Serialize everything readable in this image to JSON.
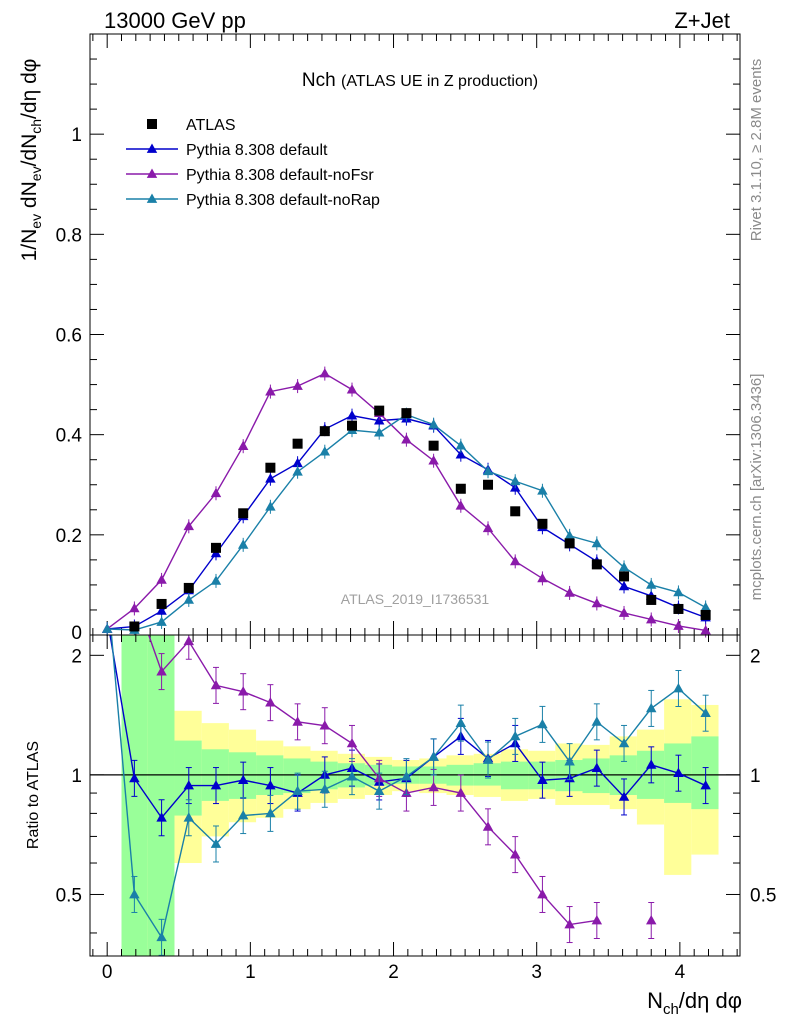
{
  "header": {
    "left": "13000 GeV pp",
    "right": "Z+Jet"
  },
  "side_labels": {
    "rivet": "Rivet 3.1.10, ≥ 2.8M events",
    "mcplots": "mcplots.cern.ch [arXiv:1306.3436]"
  },
  "chart_data": {
    "type": "scatter",
    "title_main": "Nch",
    "title_sub": "(ATLAS UE in Z production)",
    "watermark": "ATLAS_2019_I1736531",
    "xlabel_main": "N",
    "xlabel_sub": "ch",
    "xlabel_rest": "/dη dφ",
    "ylabel": {
      "p1": "1/N",
      "s1": "ev",
      "p2": " dN",
      "s2": "ev",
      "p3": "/dN",
      "s3": "ch",
      "p4": "/dη dφ"
    },
    "ratio_ylabel": "Ratio to ATLAS",
    "xlim": [
      -0.12,
      4.42
    ],
    "ylim_main": [
      0,
      1.2
    ],
    "ylim_ratio": [
      0.35,
      2.25
    ],
    "x_ticks": [
      0,
      1,
      2,
      3,
      4
    ],
    "x_tick_labels": [
      "0",
      "1",
      "2",
      "3",
      "4"
    ],
    "y_ticks_main": [
      0.2,
      0.4,
      0.6,
      0.8,
      1
    ],
    "y_tick_labels_main": [
      "0.2",
      "0.4",
      "0.6",
      "0.8",
      "1"
    ],
    "y_bottom_label_main": "0",
    "y_ticks_ratio": [
      0.5,
      1,
      2
    ],
    "y_tick_labels_ratio": [
      "0.5",
      "1",
      "2"
    ],
    "bin_edges": [
      0.1,
      0.28,
      0.47,
      0.66,
      0.85,
      1.04,
      1.23,
      1.42,
      1.61,
      1.8,
      1.99,
      2.18,
      2.37,
      2.56,
      2.75,
      2.94,
      3.13,
      3.32,
      3.51,
      3.7,
      3.89,
      4.08,
      4.27
    ],
    "data": {
      "name": "ATLAS",
      "color": "#000000",
      "x": [
        0.19,
        0.38,
        0.57,
        0.76,
        0.95,
        1.14,
        1.33,
        1.52,
        1.71,
        1.9,
        2.09,
        2.28,
        2.47,
        2.66,
        2.85,
        3.04,
        3.23,
        3.42,
        3.61,
        3.8,
        3.99,
        4.18
      ],
      "y": [
        0.017,
        0.062,
        0.094,
        0.174,
        0.243,
        0.334,
        0.382,
        0.407,
        0.418,
        0.448,
        0.443,
        0.378,
        0.292,
        0.3,
        0.247,
        0.222,
        0.183,
        0.141,
        0.117,
        0.07,
        0.052,
        0.04
      ]
    },
    "bands": {
      "green_lo": [
        0.35,
        0.35,
        0.79,
        0.86,
        0.87,
        0.89,
        0.9,
        0.92,
        0.93,
        0.94,
        0.95,
        0.95,
        0.94,
        0.94,
        0.92,
        0.92,
        0.91,
        0.9,
        0.89,
        0.87,
        0.85,
        0.82
      ],
      "green_hi": [
        2.25,
        2.25,
        1.22,
        1.16,
        1.14,
        1.12,
        1.1,
        1.08,
        1.07,
        1.06,
        1.05,
        1.05,
        1.06,
        1.07,
        1.08,
        1.08,
        1.09,
        1.1,
        1.12,
        1.15,
        1.2,
        1.25
      ],
      "yellow_lo": [
        0.35,
        0.35,
        0.6,
        0.7,
        0.76,
        0.78,
        0.82,
        0.85,
        0.87,
        0.89,
        0.91,
        0.9,
        0.89,
        0.88,
        0.86,
        0.87,
        0.84,
        0.84,
        0.82,
        0.75,
        0.56,
        0.63
      ],
      "yellow_hi": [
        2.25,
        2.0,
        1.45,
        1.35,
        1.3,
        1.22,
        1.18,
        1.15,
        1.13,
        1.11,
        1.09,
        1.1,
        1.12,
        1.13,
        1.16,
        1.15,
        1.2,
        1.19,
        1.25,
        1.3,
        1.55,
        1.5
      ]
    },
    "series": [
      {
        "name": "Pythia 8.308 default",
        "color": "#0000cc",
        "x": [
          0.0,
          0.19,
          0.38,
          0.57,
          0.76,
          0.95,
          1.14,
          1.33,
          1.52,
          1.71,
          1.9,
          2.09,
          2.28,
          2.47,
          2.66,
          2.85,
          3.04,
          3.23,
          3.42,
          3.61,
          3.8,
          3.99,
          4.18
        ],
        "y": [
          0.012,
          0.017,
          0.048,
          0.089,
          0.163,
          0.237,
          0.312,
          0.343,
          0.411,
          0.438,
          0.428,
          0.432,
          0.418,
          0.36,
          0.33,
          0.294,
          0.215,
          0.181,
          0.147,
          0.097,
          0.078,
          0.055,
          0.035
        ],
        "ratio": [
          null,
          0.98,
          0.78,
          0.94,
          0.94,
          0.97,
          0.94,
          0.9,
          1.0,
          1.04,
          0.96,
          0.98,
          1.11,
          1.25,
          1.1,
          1.2,
          0.97,
          0.98,
          1.04,
          0.88,
          1.06,
          1.01,
          0.94
        ]
      },
      {
        "name": "Pythia 8.308 default-noFsr",
        "color": "#8a1aaa",
        "x": [
          0.0,
          0.19,
          0.38,
          0.57,
          0.76,
          0.95,
          1.14,
          1.33,
          1.52,
          1.71,
          1.9,
          2.09,
          2.28,
          2.47,
          2.66,
          2.85,
          3.04,
          3.23,
          3.42,
          3.61,
          3.8,
          3.99,
          4.18
        ],
        "y": [
          0.012,
          0.053,
          0.11,
          0.217,
          0.283,
          0.377,
          0.486,
          0.497,
          0.522,
          0.49,
          0.443,
          0.39,
          0.348,
          0.258,
          0.213,
          0.147,
          0.113,
          0.084,
          0.063,
          0.044,
          0.031,
          0.018,
          0.009
        ],
        "ratio": [
          null,
          null,
          1.82,
          2.17,
          1.68,
          1.62,
          1.52,
          1.36,
          1.33,
          1.2,
          0.98,
          0.9,
          0.93,
          0.9,
          0.74,
          0.63,
          0.5,
          0.42,
          0.43,
          null,
          0.43,
          null,
          null
        ]
      },
      {
        "name": "Pythia 8.308 default-noRap",
        "color": "#1a80a8",
        "x": [
          0.0,
          0.19,
          0.38,
          0.57,
          0.76,
          0.95,
          1.14,
          1.33,
          1.52,
          1.71,
          1.9,
          2.09,
          2.28,
          2.47,
          2.66,
          2.85,
          3.04,
          3.23,
          3.42,
          3.61,
          3.8,
          3.99,
          4.18
        ],
        "y": [
          0.012,
          0.01,
          0.026,
          0.07,
          0.108,
          0.18,
          0.256,
          0.326,
          0.366,
          0.409,
          0.404,
          0.44,
          0.42,
          0.378,
          0.327,
          0.307,
          0.288,
          0.198,
          0.183,
          0.135,
          0.1,
          0.085,
          0.055
        ],
        "ratio": [
          null,
          0.5,
          0.39,
          0.78,
          0.67,
          0.79,
          0.8,
          0.91,
          0.92,
          0.99,
          0.91,
          0.99,
          1.11,
          1.35,
          1.09,
          1.25,
          1.34,
          1.08,
          1.36,
          1.2,
          1.47,
          1.65,
          1.43
        ]
      }
    ]
  }
}
